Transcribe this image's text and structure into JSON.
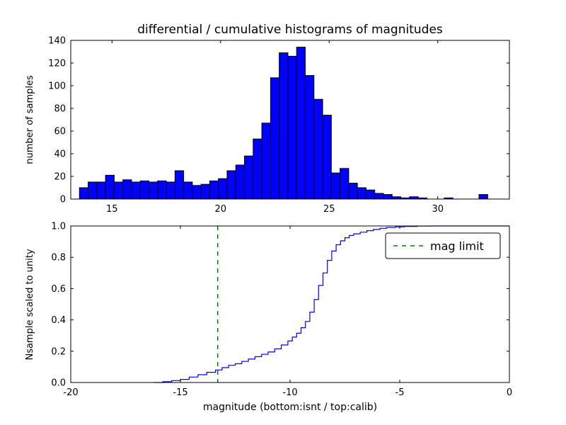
{
  "figure": {
    "background": "#ffffff",
    "frame_color": "#000000"
  },
  "chart_data": [
    {
      "type": "bar",
      "title": "differential / cumulative histograms of magnitudes",
      "xlabel": "",
      "ylabel": "number of samples",
      "bar_color": "#0000ff",
      "bar_edge_color": "#000000",
      "grid": false,
      "xlim": [
        13.1,
        33.3
      ],
      "ylim": [
        0,
        140
      ],
      "xticks": [
        15,
        20,
        25,
        30
      ],
      "xtick_labels": [
        "15",
        "20",
        "25",
        "30"
      ],
      "yticks": [
        0,
        20,
        40,
        60,
        80,
        100,
        120,
        140
      ],
      "ytick_labels": [
        "0",
        "20",
        "40",
        "60",
        "80",
        "100",
        "120",
        "140"
      ],
      "bin_start": 13.5,
      "bin_width": 0.4,
      "counts": [
        10,
        15,
        15,
        21,
        15,
        17,
        15,
        16,
        15,
        16,
        15,
        25,
        15,
        12,
        13,
        16,
        18,
        25,
        30,
        38,
        53,
        67,
        107,
        129,
        126,
        134,
        109,
        88,
        74,
        23,
        27,
        14,
        10,
        8,
        5,
        4,
        2,
        1,
        2,
        1,
        0,
        0,
        1,
        0,
        0,
        0,
        4,
        0
      ]
    },
    {
      "type": "line",
      "title": "",
      "xlabel": "magnitude (bottom:isnt / top:calib)",
      "ylabel": "Nsample scaled to unity",
      "line_color": "#0000ff",
      "grid": false,
      "step": true,
      "xlim": [
        -20,
        0
      ],
      "ylim": [
        0.0,
        1.0
      ],
      "xticks": [
        -20,
        -15,
        -10,
        -5,
        0
      ],
      "xtick_labels": [
        "-20",
        "-15",
        "-10",
        "-5",
        "0"
      ],
      "yticks": [
        0.0,
        0.2,
        0.4,
        0.6,
        0.8,
        1.0
      ],
      "ytick_labels": [
        "0.0",
        "0.2",
        "0.4",
        "0.6",
        "0.8",
        "1.0"
      ],
      "points": [
        [
          -16.2,
          0
        ],
        [
          -15.8,
          0.005
        ],
        [
          -15.4,
          0.012
        ],
        [
          -15.0,
          0.02
        ],
        [
          -14.6,
          0.035
        ],
        [
          -14.2,
          0.05
        ],
        [
          -13.8,
          0.065
        ],
        [
          -13.4,
          0.08
        ],
        [
          -13.1,
          0.095
        ],
        [
          -12.8,
          0.11
        ],
        [
          -12.5,
          0.12
        ],
        [
          -12.2,
          0.135
        ],
        [
          -11.9,
          0.15
        ],
        [
          -11.6,
          0.165
        ],
        [
          -11.3,
          0.18
        ],
        [
          -11.0,
          0.195
        ],
        [
          -10.7,
          0.215
        ],
        [
          -10.4,
          0.24
        ],
        [
          -10.1,
          0.265
        ],
        [
          -9.9,
          0.29
        ],
        [
          -9.7,
          0.315
        ],
        [
          -9.5,
          0.35
        ],
        [
          -9.3,
          0.39
        ],
        [
          -9.1,
          0.45
        ],
        [
          -8.9,
          0.53
        ],
        [
          -8.7,
          0.62
        ],
        [
          -8.5,
          0.7
        ],
        [
          -8.3,
          0.78
        ],
        [
          -8.1,
          0.84
        ],
        [
          -7.9,
          0.88
        ],
        [
          -7.7,
          0.905
        ],
        [
          -7.5,
          0.925
        ],
        [
          -7.3,
          0.94
        ],
        [
          -7.1,
          0.95
        ],
        [
          -6.8,
          0.96
        ],
        [
          -6.5,
          0.97
        ],
        [
          -6.2,
          0.978
        ],
        [
          -5.9,
          0.985
        ],
        [
          -5.6,
          0.99
        ],
        [
          -5.2,
          0.994
        ],
        [
          -4.8,
          0.997
        ],
        [
          -4.2,
          0.999
        ],
        [
          -3.6,
          1.0
        ],
        [
          0.0,
          1.0
        ]
      ],
      "vline": {
        "x": -13.3,
        "color": "#008000",
        "style": "dashed",
        "label": "mag limit"
      },
      "legend": {
        "position": "upper right",
        "entries": [
          {
            "label": "mag limit",
            "color": "#008000",
            "style": "dashed"
          }
        ]
      }
    }
  ]
}
